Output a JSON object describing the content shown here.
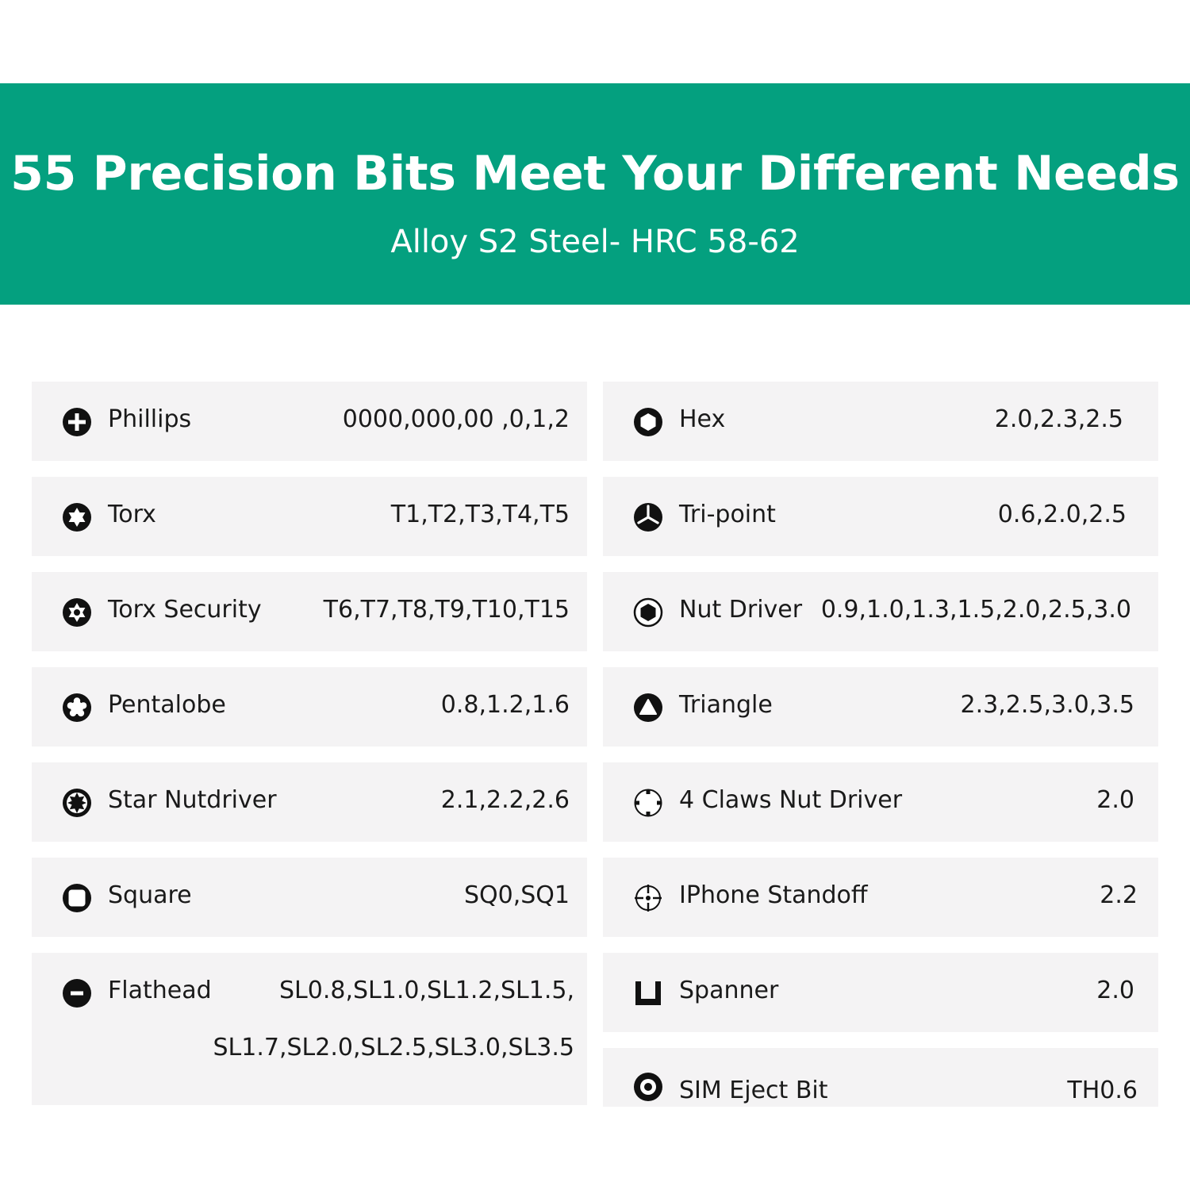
{
  "header": {
    "title": "55 Precision Bits Meet Your Different Needs",
    "subtitle": "Alloy S2 Steel- HRC 58-62",
    "background_color": "#04a07f",
    "text_color": "#ffffff"
  },
  "colors": {
    "row_background": "#f4f3f4",
    "icon_color": "#111111"
  },
  "left_column": [
    {
      "name": "Phillips",
      "values": "0000,000,00 ,0,1,2",
      "icon": "phillips-icon"
    },
    {
      "name": "Torx",
      "values": "T1,T2,T3,T4,T5",
      "icon": "torx-icon"
    },
    {
      "name": "Torx Security",
      "values": "T6,T7,T8,T9,T10,T15",
      "icon": "torx-security-icon"
    },
    {
      "name": "Pentalobe",
      "values": "0.8,1.2,1.6",
      "icon": "pentalobe-icon"
    },
    {
      "name": "Star Nutdriver",
      "values": "2.1,2.2,2.6",
      "icon": "star-nutdriver-icon"
    },
    {
      "name": "Square",
      "values": "SQ0,SQ1",
      "icon": "square-icon"
    },
    {
      "name": "Flathead",
      "values": "SL0.8,SL1.0,SL1.2,SL1.5,",
      "values_line2": "SL1.7,SL2.0,SL2.5,SL3.0,SL3.5",
      "icon": "flathead-icon"
    }
  ],
  "right_column": [
    {
      "name": "Hex",
      "values": "2.0,2.3,2.5",
      "icon": "hex-icon"
    },
    {
      "name": "Tri-point",
      "values": "0.6,2.0,2.5",
      "icon": "tri-point-icon"
    },
    {
      "name": "Nut Driver",
      "values": "0.9,1.0,1.3,1.5,2.0,2.5,3.0",
      "icon": "nut-driver-icon"
    },
    {
      "name": "Triangle",
      "values": "2.3,2.5,3.0,3.5",
      "icon": "triangle-icon"
    },
    {
      "name": "4 Claws Nut Driver",
      "values": "2.0",
      "icon": "four-claws-icon"
    },
    {
      "name": "IPhone Standoff",
      "values": "2.2",
      "icon": "iphone-standoff-icon"
    },
    {
      "name": "Spanner",
      "values": "2.0",
      "icon": "spanner-icon"
    },
    {
      "name": "SIM Eject Bit",
      "values": "TH0.6",
      "icon": "sim-eject-icon"
    }
  ]
}
